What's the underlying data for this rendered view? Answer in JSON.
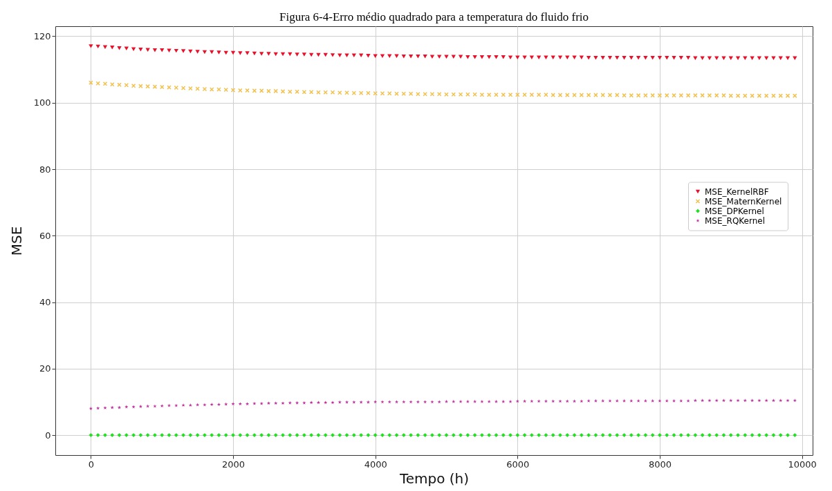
{
  "chart_data": {
    "type": "scatter",
    "title": "Figura 6-4-Erro médio quadrado para a temperatura do fluido frio",
    "xlabel": "Tempo (h)",
    "ylabel": "MSE",
    "x": [
      0,
      100,
      200,
      300,
      400,
      500,
      600,
      700,
      800,
      900,
      1000,
      1100,
      1200,
      1300,
      1400,
      1500,
      1600,
      1700,
      1800,
      1900,
      2000,
      2100,
      2200,
      2300,
      2400,
      2500,
      2600,
      2700,
      2800,
      2900,
      3000,
      3100,
      3200,
      3300,
      3400,
      3500,
      3600,
      3700,
      3800,
      3900,
      4000,
      4100,
      4200,
      4300,
      4400,
      4500,
      4600,
      4700,
      4800,
      4900,
      5000,
      5100,
      5200,
      5300,
      5400,
      5500,
      5600,
      5700,
      5800,
      5900,
      6000,
      6100,
      6200,
      6300,
      6400,
      6500,
      6600,
      6700,
      6800,
      6900,
      7000,
      7100,
      7200,
      7300,
      7400,
      7500,
      7600,
      7700,
      7800,
      7900,
      8000,
      8100,
      8200,
      8300,
      8400,
      8500,
      8600,
      8700,
      8800,
      8900,
      9000,
      9100,
      9200,
      9300,
      9400,
      9500,
      9600,
      9700,
      9800,
      9900
    ],
    "xlim": [
      -500,
      10150
    ],
    "xticks": [
      0,
      2000,
      4000,
      6000,
      8000,
      10000
    ],
    "ylim": [
      -6,
      123
    ],
    "yticks": [
      0,
      20,
      40,
      60,
      80,
      100,
      120
    ],
    "grid": true,
    "legend": "right",
    "series": [
      {
        "name": "MSE_KernelRBF",
        "color": "#e8102a",
        "marker": "triangle",
        "values": [
          117.0,
          116.9,
          116.7,
          116.6,
          116.4,
          116.3,
          116.1,
          116.0,
          115.9,
          115.8,
          115.8,
          115.7,
          115.6,
          115.5,
          115.4,
          115.3,
          115.2,
          115.2,
          115.1,
          115.0,
          115.0,
          114.9,
          114.9,
          114.8,
          114.7,
          114.7,
          114.6,
          114.6,
          114.6,
          114.5,
          114.5,
          114.4,
          114.4,
          114.4,
          114.3,
          114.2,
          114.2,
          114.2,
          114.2,
          114.1,
          114.0,
          114.0,
          114.0,
          114.0,
          113.9,
          113.9,
          113.9,
          113.9,
          113.8,
          113.8,
          113.8,
          113.8,
          113.8,
          113.7,
          113.7,
          113.7,
          113.7,
          113.7,
          113.7,
          113.6,
          113.6,
          113.6,
          113.6,
          113.6,
          113.6,
          113.6,
          113.6,
          113.6,
          113.6,
          113.6,
          113.5,
          113.5,
          113.5,
          113.5,
          113.5,
          113.5,
          113.5,
          113.5,
          113.5,
          113.5,
          113.5,
          113.5,
          113.5,
          113.5,
          113.5,
          113.4,
          113.4,
          113.4,
          113.4,
          113.4,
          113.4,
          113.4,
          113.4,
          113.4,
          113.4,
          113.4,
          113.4,
          113.4,
          113.4,
          113.4
        ]
      },
      {
        "name": "MSE_MaternKernel",
        "color": "#f2c14e",
        "marker": "cross",
        "values": [
          106.0,
          105.8,
          105.7,
          105.5,
          105.4,
          105.3,
          105.1,
          105.0,
          104.9,
          104.8,
          104.7,
          104.6,
          104.5,
          104.4,
          104.3,
          104.2,
          104.1,
          104.0,
          104.0,
          103.9,
          103.8,
          103.7,
          103.7,
          103.6,
          103.6,
          103.5,
          103.5,
          103.4,
          103.3,
          103.3,
          103.2,
          103.2,
          103.1,
          103.1,
          103.1,
          103.0,
          103.0,
          102.9,
          102.9,
          102.9,
          102.8,
          102.8,
          102.8,
          102.7,
          102.7,
          102.7,
          102.6,
          102.6,
          102.6,
          102.6,
          102.5,
          102.5,
          102.5,
          102.5,
          102.5,
          102.4,
          102.4,
          102.4,
          102.4,
          102.4,
          102.4,
          102.4,
          102.4,
          102.4,
          102.4,
          102.3,
          102.3,
          102.3,
          102.3,
          102.3,
          102.3,
          102.3,
          102.3,
          102.3,
          102.3,
          102.2,
          102.2,
          102.2,
          102.2,
          102.2,
          102.2,
          102.2,
          102.2,
          102.2,
          102.2,
          102.2,
          102.2,
          102.2,
          102.2,
          102.2,
          102.1,
          102.1,
          102.1,
          102.1,
          102.1,
          102.1,
          102.1,
          102.1,
          102.1,
          102.1
        ]
      },
      {
        "name": "MSE_DPKernel",
        "color": "#1fe01f",
        "marker": "diamond",
        "values": [
          0,
          0,
          0,
          0,
          0,
          0,
          0,
          0,
          0,
          0,
          0,
          0,
          0,
          0,
          0,
          0,
          0,
          0,
          0,
          0,
          0,
          0,
          0,
          0,
          0,
          0,
          0,
          0,
          0,
          0,
          0,
          0,
          0,
          0,
          0,
          0,
          0,
          0,
          0,
          0,
          0,
          0,
          0,
          0,
          0,
          0,
          0,
          0,
          0,
          0,
          0,
          0,
          0,
          0,
          0,
          0,
          0,
          0,
          0,
          0,
          0,
          0,
          0,
          0,
          0,
          0,
          0,
          0,
          0,
          0,
          0,
          0,
          0,
          0,
          0,
          0,
          0,
          0,
          0,
          0,
          0,
          0,
          0,
          0,
          0,
          0,
          0,
          0,
          0,
          0,
          0,
          0,
          0,
          0,
          0,
          0,
          0,
          0,
          0,
          0
        ]
      },
      {
        "name": "MSE_RQKernel",
        "color": "#c0309f",
        "marker": "star",
        "values": [
          8.0,
          8.1,
          8.2,
          8.3,
          8.3,
          8.5,
          8.5,
          8.6,
          8.7,
          8.7,
          8.8,
          8.9,
          8.9,
          9.0,
          9.0,
          9.1,
          9.1,
          9.2,
          9.2,
          9.3,
          9.4,
          9.4,
          9.4,
          9.5,
          9.5,
          9.6,
          9.6,
          9.6,
          9.7,
          9.7,
          9.7,
          9.8,
          9.8,
          9.8,
          9.8,
          9.9,
          9.9,
          9.9,
          9.9,
          9.9,
          10.0,
          10.0,
          10.0,
          10.0,
          10.0,
          10.0,
          10.0,
          10.0,
          10.0,
          10.0,
          10.1,
          10.1,
          10.1,
          10.1,
          10.1,
          10.1,
          10.1,
          10.1,
          10.1,
          10.1,
          10.2,
          10.2,
          10.2,
          10.2,
          10.2,
          10.2,
          10.2,
          10.2,
          10.2,
          10.2,
          10.3,
          10.3,
          10.3,
          10.3,
          10.3,
          10.3,
          10.3,
          10.3,
          10.3,
          10.3,
          10.3,
          10.3,
          10.3,
          10.3,
          10.3,
          10.4,
          10.4,
          10.4,
          10.4,
          10.4,
          10.4,
          10.4,
          10.4,
          10.4,
          10.4,
          10.4,
          10.4,
          10.4,
          10.4,
          10.4
        ]
      }
    ]
  }
}
